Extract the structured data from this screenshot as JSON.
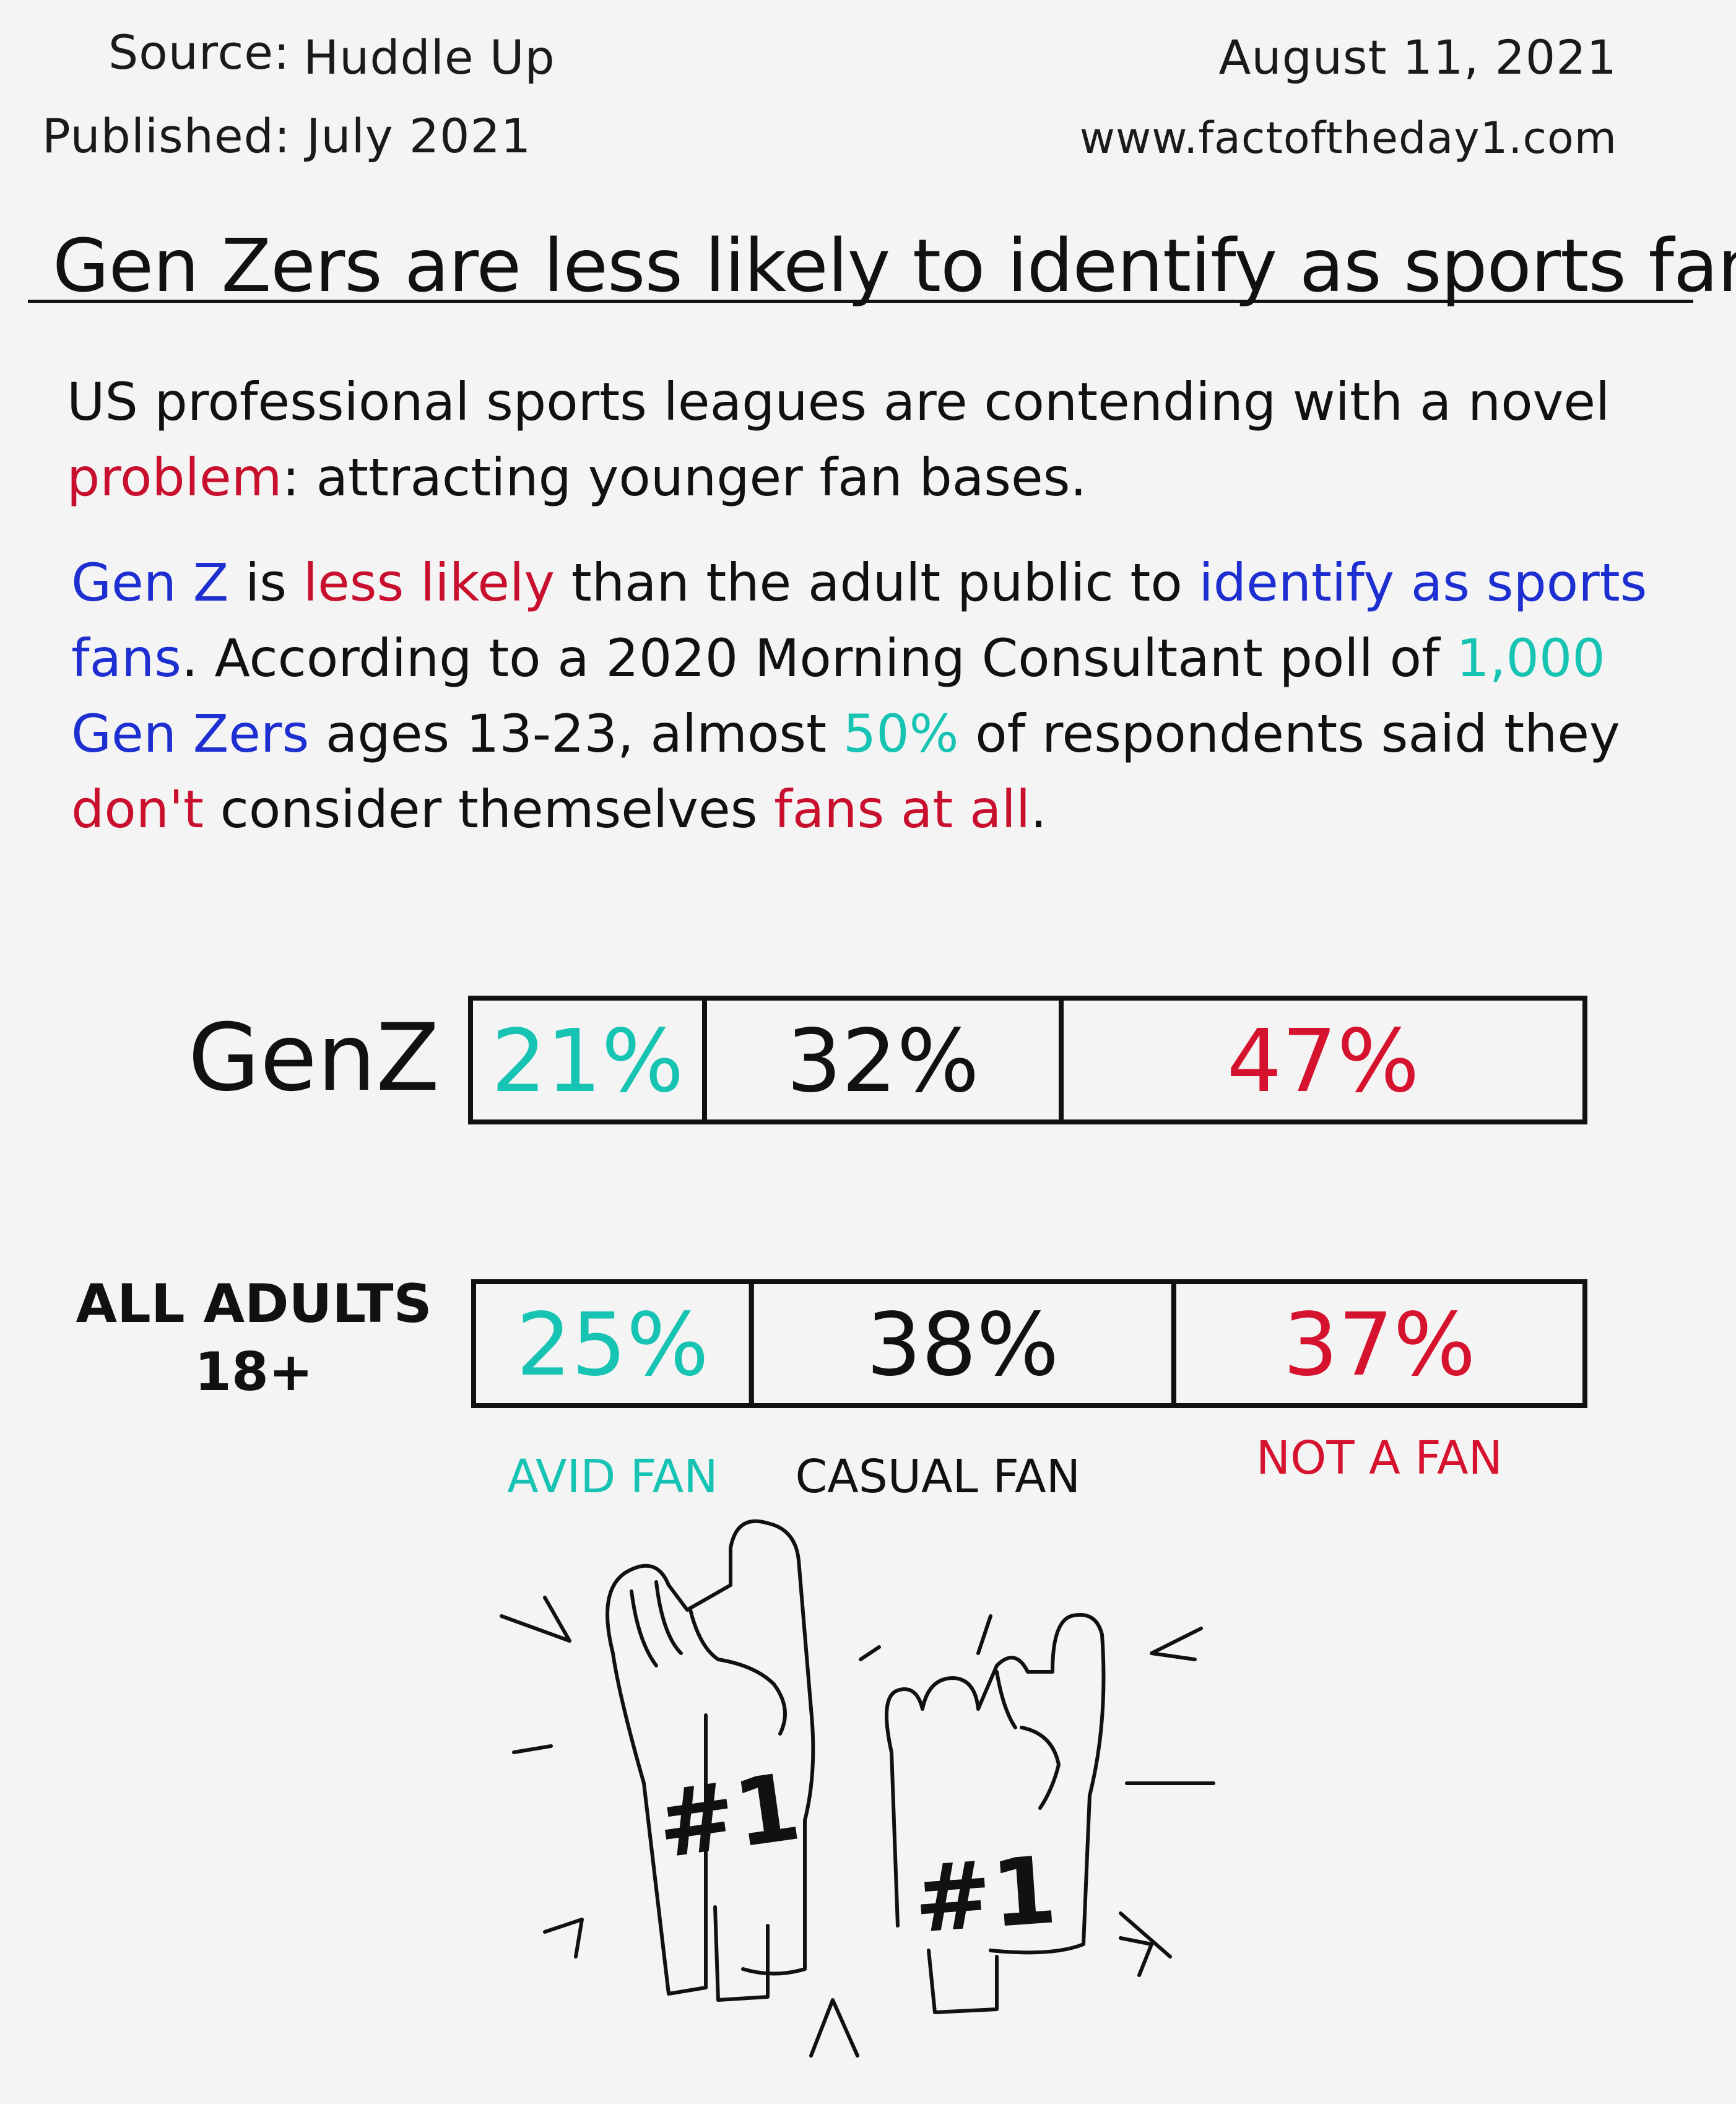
{
  "header": {
    "source_label": "Source:",
    "source_value": "Huddle Up",
    "published_label": "Published:",
    "published_value": "July 2021",
    "date": "August 11, 2021",
    "website": "www.factoftheday1.com"
  },
  "title": "Gen Zers are less likely to identify as sports fans",
  "paragraph1": {
    "line1": "US professional sports leagues are contending with a novel",
    "problem": "problem",
    "rest": ": attracting younger fan bases."
  },
  "paragraph2": {
    "gen_z": "Gen Z",
    "is": " is ",
    "less_likely": "less likely",
    "than": " than the adult public to ",
    "identify": "identify as sports",
    "fans": "fans",
    "according": ". According to a 2020 Morning Consultant poll of ",
    "thousand": "1,000",
    "gen_zers": "Gen Zers",
    "ages": " ages 13-23, almost ",
    "fifty": "50%",
    "respondents": " of respondents said they",
    "dont": "don't",
    "consider": " consider themselves ",
    "fans_at_all": "fans at all",
    "period": "."
  },
  "colors": {
    "avid": "#17c3b2",
    "casual": "#111111",
    "not_fan": "#d6132e",
    "highlight_red": "#c8102e",
    "highlight_blue": "#1d2fd0"
  },
  "icons": [
    "foam-finger-number-one-icon",
    "foam-finger-rock-on-icon"
  ],
  "chart_data": {
    "type": "bar",
    "stacked": true,
    "orientation": "horizontal",
    "unit": "%",
    "categories": [
      "GenZ",
      "ALL ADULTS 18+"
    ],
    "series": [
      {
        "name": "AVID FAN",
        "values": [
          21,
          25
        ],
        "labels": [
          "21%",
          "25%"
        ],
        "color": "#17c3b2"
      },
      {
        "name": "CASUAL FAN",
        "values": [
          32,
          38
        ],
        "labels": [
          "32%",
          "38%"
        ],
        "color": "#111111"
      },
      {
        "name": "NOT A FAN",
        "values": [
          47,
          37
        ],
        "labels": [
          "47%",
          "37%"
        ],
        "color": "#d6132e"
      }
    ],
    "legend_position": "bottom",
    "grid": false
  }
}
